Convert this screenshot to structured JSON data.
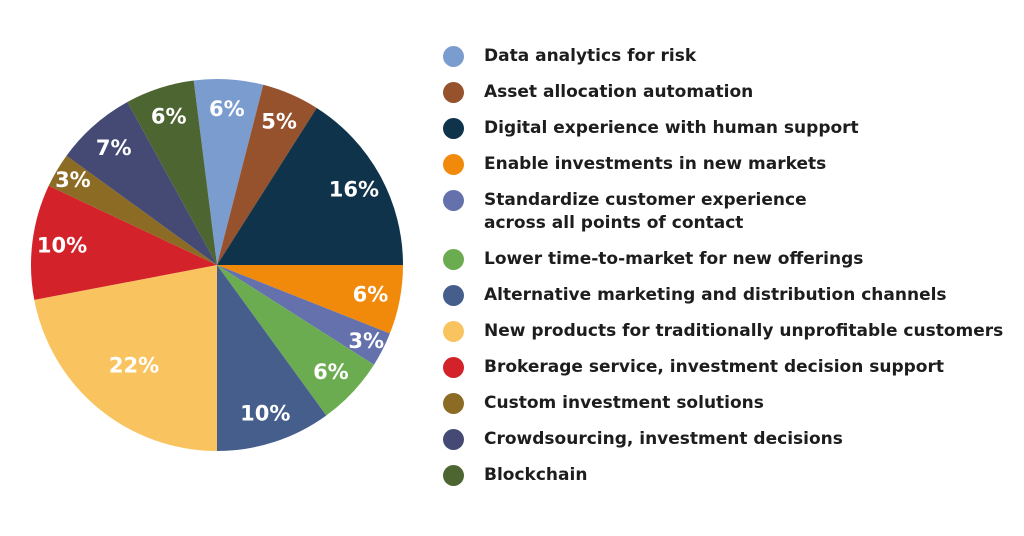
{
  "page": {
    "background_color": "#ffffff",
    "text_color": "#1d1d1d"
  },
  "chart_data": {
    "type": "pie",
    "title": "",
    "value_suffix": "%",
    "direction": "clockwise",
    "start_angle_deg": -7.2,
    "legend_position": "right",
    "slices": [
      {
        "label": "Data analytics for risk",
        "value": 6,
        "color": "#7B9CCE"
      },
      {
        "label": "Asset allocation automation",
        "value": 5,
        "color": "#96512D"
      },
      {
        "label": "Digital experience with human support",
        "value": 16,
        "color": "#0E334B"
      },
      {
        "label": "Enable investments in new markets",
        "value": 6,
        "color": "#F18A0B"
      },
      {
        "label": "Standardize customer experience across all points of contact",
        "value": 3,
        "color": "#6471AC",
        "legend_lines": [
          "Standardize customer experience",
          "across all points of contact"
        ]
      },
      {
        "label": "Lower time-to-market for new offerings",
        "value": 6,
        "color": "#6CAC51"
      },
      {
        "label": "Alternative marketing and distribution channels",
        "value": 10,
        "color": "#455E8C"
      },
      {
        "label": "New products for traditionally unprofitable customers",
        "value": 22,
        "color": "#F9C45F"
      },
      {
        "label": "Brokerage service, investment decision support",
        "value": 10,
        "color": "#D3222A"
      },
      {
        "label": "Custom investment solutions",
        "value": 3,
        "color": "#8C6C24"
      },
      {
        "label": "Crowdsourcing, investment decisions",
        "value": 7,
        "color": "#454A75"
      },
      {
        "label": "Blockchain",
        "value": 6,
        "color": "#4D6530"
      }
    ]
  }
}
